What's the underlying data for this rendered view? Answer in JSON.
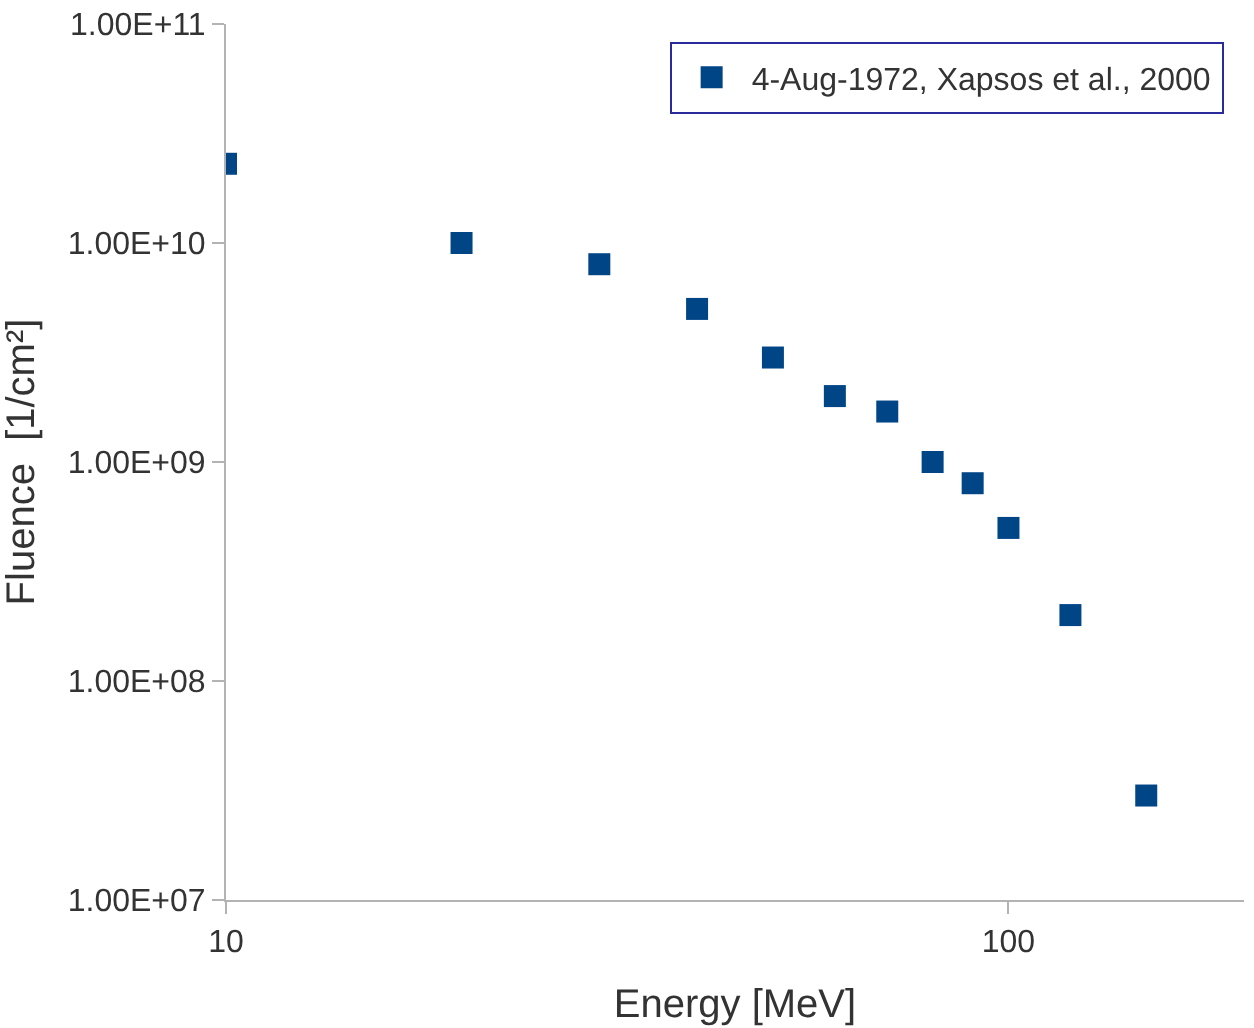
{
  "chart_data": {
    "type": "scatter",
    "xlabel": "Energy [MeV]",
    "ylabel": "Fluence  [1/cm²]",
    "x": [
      10,
      20,
      30,
      40,
      50,
      60,
      70,
      80,
      90,
      100,
      120,
      150
    ],
    "series": [
      {
        "name": "4-Aug-1972, Xapsos et al., 2000",
        "color": "#004586",
        "values": [
          23000000000.0,
          10000000000.0,
          8000000000.0,
          5000000000.0,
          3000000000.0,
          2000000000.0,
          1700000000.0,
          1000000000.0,
          800000000.0,
          500000000.0,
          200000000.0,
          30000000.0
        ]
      }
    ],
    "log": "xy",
    "xlim": [
      10,
      200
    ],
    "ylim": [
      10000000.0,
      100000000000.0
    ],
    "xticks": [
      10,
      100
    ],
    "yticks": [
      {
        "value": 10000000.0,
        "label": "1.00E+07"
      },
      {
        "value": 100000000.0,
        "label": "1.00E+08"
      },
      {
        "value": 1000000000.0,
        "label": "1.00E+09"
      },
      {
        "value": 10000000000.0,
        "label": "1.00E+10"
      },
      {
        "value": 100000000000.0,
        "label": "1.00E+11"
      }
    ],
    "grid": false,
    "legend": "top right",
    "marker": "square"
  }
}
